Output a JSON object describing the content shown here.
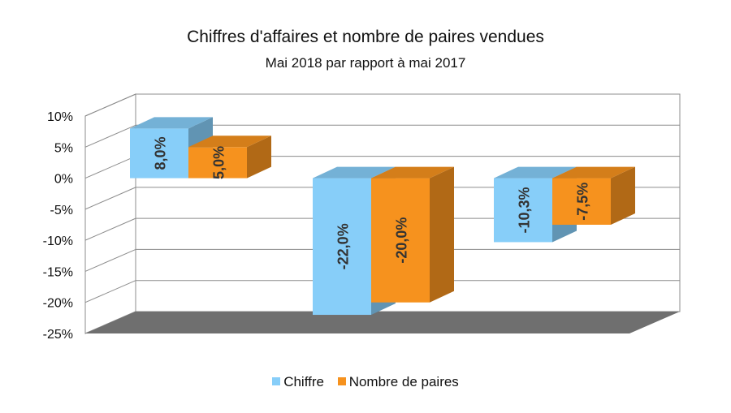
{
  "chart_data": {
    "type": "bar",
    "title": "Chiffres d'affaires et nombre de paires vendues",
    "subtitle": "Mai 2018 par rapport à mai 2017",
    "categories": [
      "",
      "",
      ""
    ],
    "series": [
      {
        "name": "Chiffre",
        "color": "#87cef9",
        "values": [
          8.0,
          -22.0,
          -10.3
        ],
        "labels": [
          "8,0%",
          "-22,0%",
          "-10,3%"
        ]
      },
      {
        "name": "Nombre de paires",
        "color": "#f6921e",
        "values": [
          5.0,
          -20.0,
          -7.5
        ],
        "labels": [
          "5,0%",
          "-20,0%",
          "-7,5%"
        ]
      }
    ],
    "y_ticks": [
      10,
      5,
      0,
      -5,
      -10,
      -15,
      -20,
      -25
    ],
    "y_tick_labels": [
      "10%",
      "5%",
      "0%",
      "-5%",
      "-10%",
      "-15%",
      "-20%",
      "-25%"
    ],
    "ylim": [
      -25,
      10
    ],
    "grid": true,
    "legend_position": "bottom"
  }
}
